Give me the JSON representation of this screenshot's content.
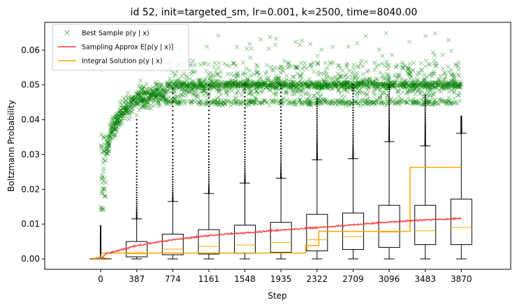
{
  "chart_data": {
    "type": "line+scatter+boxplot",
    "title": "id 52, init=targeted_sm, lr=0.001, k=2500, time=8040.00",
    "xlabel": "Step",
    "ylabel": "Boltzmann Probability",
    "xlim": [
      -600,
      4400
    ],
    "ylim": [
      -0.003,
      0.068
    ],
    "yticks": [
      0.0,
      0.01,
      0.02,
      0.03,
      0.04,
      0.05,
      0.06
    ],
    "ytick_labels": [
      "0.00",
      "0.01",
      "0.02",
      "0.03",
      "0.04",
      "0.05",
      "0.06"
    ],
    "xticks": [
      0,
      387,
      774,
      1161,
      1548,
      1935,
      2322,
      2709,
      3096,
      3483,
      3870
    ],
    "xtick_labels": [
      "0",
      "387",
      "774",
      "1161",
      "1548",
      "1935",
      "2322",
      "2709",
      "3096",
      "3483",
      "3870"
    ],
    "grid": false,
    "legend_position": "top-left",
    "legend": [
      {
        "label": "Best Sample p(y | x)",
        "color": "#008000",
        "marker": "x"
      },
      {
        "label": "Sampling Approx E[p(y | x)]",
        "color": "#ff3333",
        "marker": "line"
      },
      {
        "label": "Integral Solution p(y | x)",
        "color": "#ffa500",
        "marker": "line"
      }
    ],
    "boxplots": [
      {
        "x": 0,
        "q1": 0.0,
        "median": 0.0,
        "q3": 0.0001,
        "wlow": 0.0,
        "whigh": 0.0002,
        "flier_max": 0.0095
      },
      {
        "x": 387,
        "q1": 0.0006,
        "median": 0.0015,
        "q3": 0.005,
        "wlow": 0.0,
        "whigh": 0.0115,
        "flier_max": 0.04
      },
      {
        "x": 774,
        "q1": 0.0012,
        "median": 0.0028,
        "q3": 0.0071,
        "wlow": 0.0,
        "whigh": 0.0165,
        "flier_max": 0.049
      },
      {
        "x": 1161,
        "q1": 0.0014,
        "median": 0.0036,
        "q3": 0.0084,
        "wlow": 0.0,
        "whigh": 0.0188,
        "flier_max": 0.05
      },
      {
        "x": 1548,
        "q1": 0.0016,
        "median": 0.004,
        "q3": 0.0097,
        "wlow": 0.0,
        "whigh": 0.0218,
        "flier_max": 0.05
      },
      {
        "x": 1935,
        "q1": 0.0019,
        "median": 0.0047,
        "q3": 0.0105,
        "wlow": 0.0,
        "whigh": 0.0232,
        "flier_max": 0.05
      },
      {
        "x": 2322,
        "q1": 0.0023,
        "median": 0.0055,
        "q3": 0.0128,
        "wlow": 0.0,
        "whigh": 0.0285,
        "flier_max": 0.046
      },
      {
        "x": 2709,
        "q1": 0.0027,
        "median": 0.0064,
        "q3": 0.0132,
        "wlow": 0.0,
        "whigh": 0.0288,
        "flier_max": 0.05
      },
      {
        "x": 3096,
        "q1": 0.0033,
        "median": 0.0077,
        "q3": 0.0154,
        "wlow": 0.0,
        "whigh": 0.0337,
        "flier_max": 0.05
      },
      {
        "x": 3483,
        "q1": 0.0041,
        "median": 0.0081,
        "q3": 0.0154,
        "wlow": 0.0,
        "whigh": 0.0325,
        "flier_max": 0.047
      },
      {
        "x": 3870,
        "q1": 0.0041,
        "median": 0.009,
        "q3": 0.0172,
        "wlow": 0.0,
        "whigh": 0.0361,
        "flier_max": 0.041
      }
    ],
    "integral_solution_steps": [
      {
        "x": -100,
        "y": 0.0
      },
      {
        "x": 0,
        "y": 0.0
      },
      {
        "x": 10,
        "y": 0.0017
      },
      {
        "x": 2200,
        "y": 0.0017
      },
      {
        "x": 2200,
        "y": 0.0038
      },
      {
        "x": 2340,
        "y": 0.0038
      },
      {
        "x": 2340,
        "y": 0.0079
      },
      {
        "x": 3320,
        "y": 0.0079
      },
      {
        "x": 3320,
        "y": 0.0263
      },
      {
        "x": 3870,
        "y": 0.0263
      }
    ],
    "sampling_approx": [
      {
        "x": 0,
        "y": 0.0
      },
      {
        "x": 60,
        "y": 0.0015
      },
      {
        "x": 200,
        "y": 0.0025
      },
      {
        "x": 387,
        "y": 0.0038
      },
      {
        "x": 600,
        "y": 0.0048
      },
      {
        "x": 774,
        "y": 0.0055
      },
      {
        "x": 1000,
        "y": 0.0062
      },
      {
        "x": 1161,
        "y": 0.0067
      },
      {
        "x": 1400,
        "y": 0.0072
      },
      {
        "x": 1548,
        "y": 0.0075
      },
      {
        "x": 1800,
        "y": 0.008
      },
      {
        "x": 1935,
        "y": 0.0083
      },
      {
        "x": 2200,
        "y": 0.0088
      },
      {
        "x": 2322,
        "y": 0.009
      },
      {
        "x": 2500,
        "y": 0.0093
      },
      {
        "x": 2709,
        "y": 0.0098
      },
      {
        "x": 2900,
        "y": 0.0102
      },
      {
        "x": 3096,
        "y": 0.0106
      },
      {
        "x": 3300,
        "y": 0.0109
      },
      {
        "x": 3483,
        "y": 0.0112
      },
      {
        "x": 3700,
        "y": 0.0114
      },
      {
        "x": 3870,
        "y": 0.0116
      }
    ],
    "best_sample_trend": [
      {
        "x": 0,
        "y": 0.02
      },
      {
        "x": 50,
        "y": 0.03
      },
      {
        "x": 120,
        "y": 0.037
      },
      {
        "x": 250,
        "y": 0.043
      },
      {
        "x": 387,
        "y": 0.046
      },
      {
        "x": 600,
        "y": 0.0475
      },
      {
        "x": 900,
        "y": 0.0485
      },
      {
        "x": 1200,
        "y": 0.049
      },
      {
        "x": 3870,
        "y": 0.049
      }
    ],
    "best_sample_levels": [
      0.045,
      0.0495,
      0.05,
      0.065
    ],
    "best_sample_range": {
      "x": [
        0,
        3870
      ],
      "y": [
        0.0,
        0.065
      ]
    }
  }
}
